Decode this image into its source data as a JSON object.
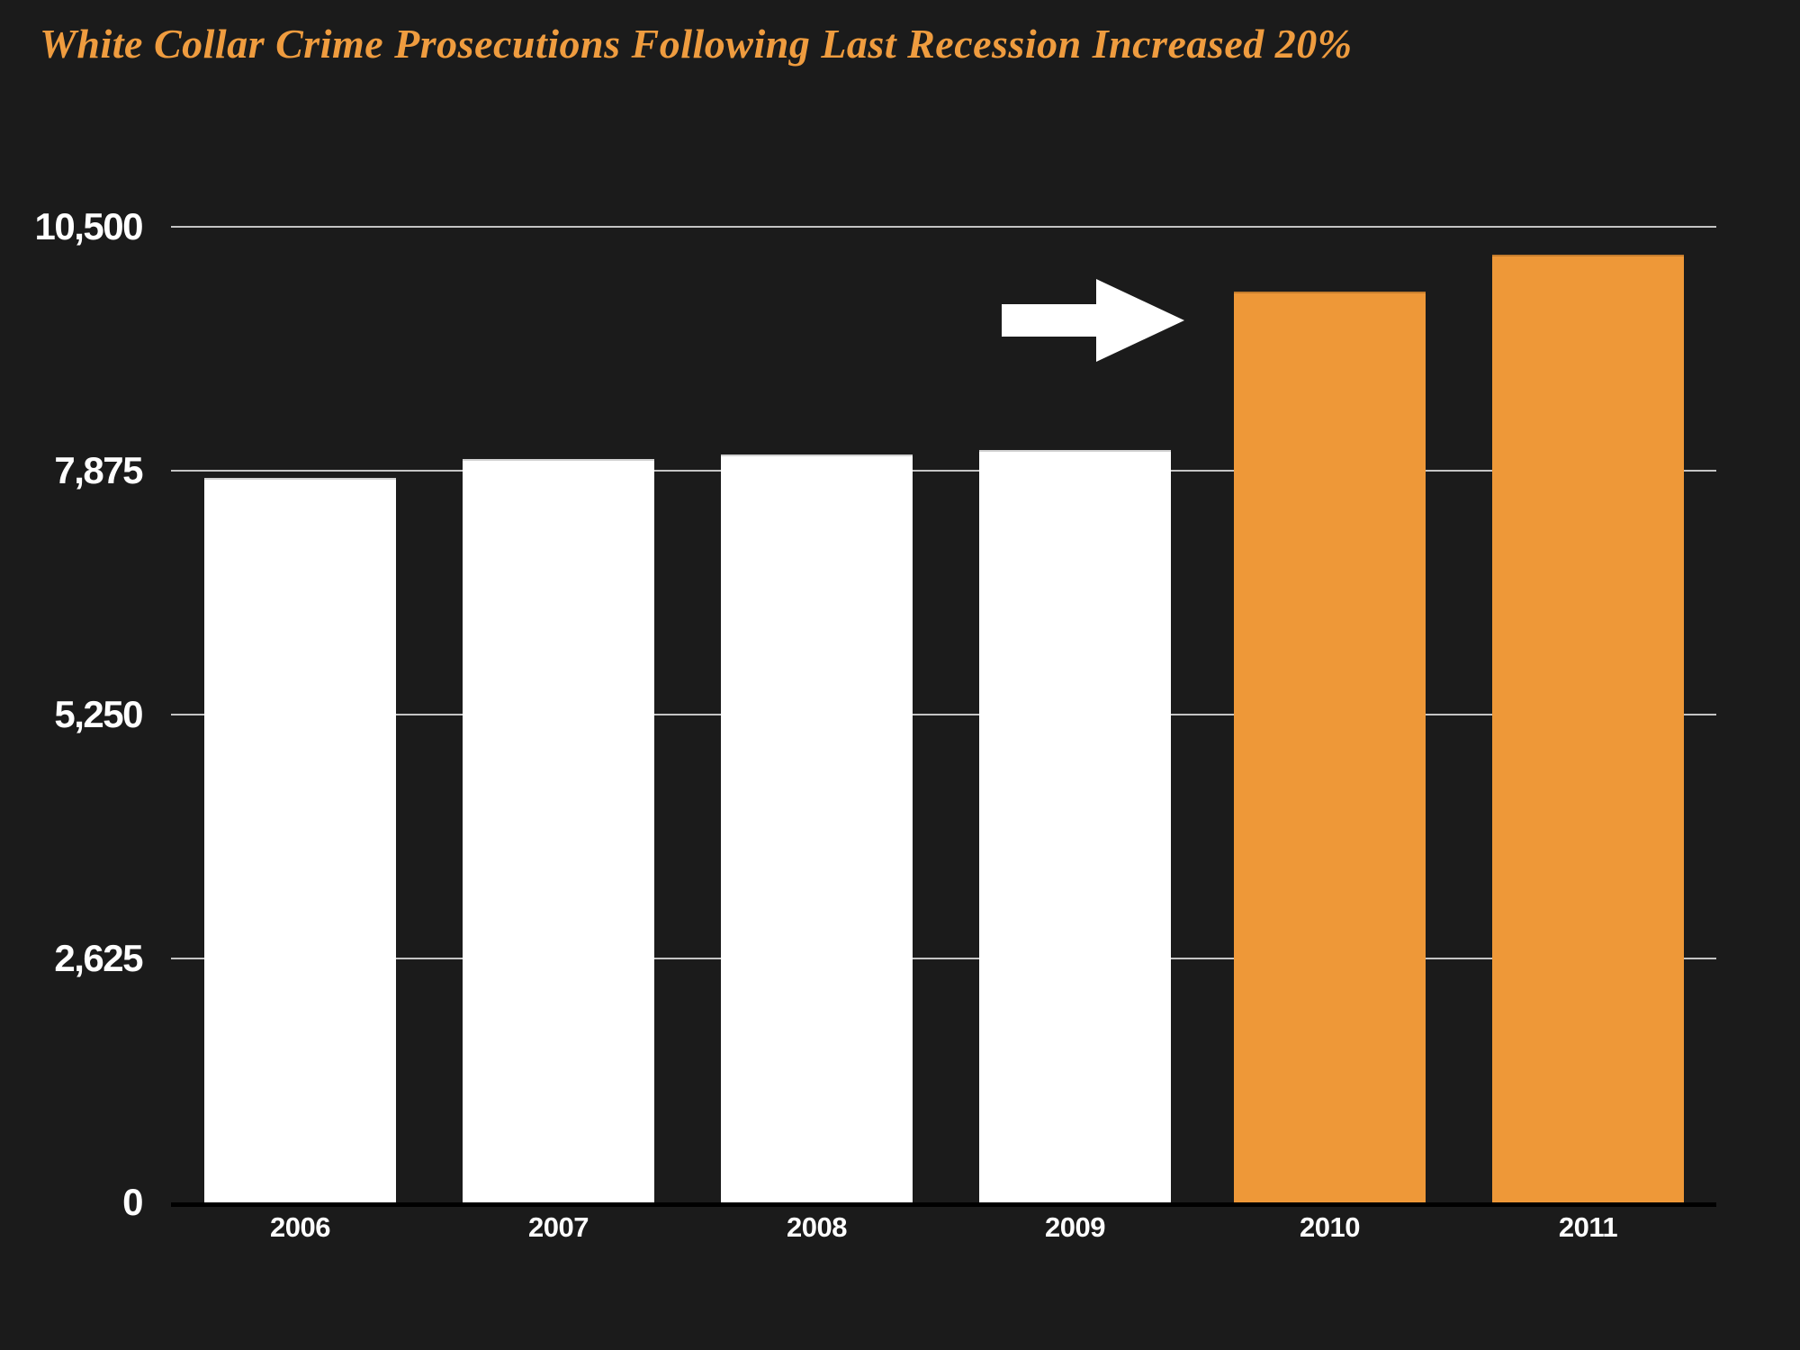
{
  "title": "White Collar Crime Prosecutions Following Last Recession Increased 20%",
  "colors": {
    "background": "#1b1b1b",
    "title": "#EF9C3F",
    "bar_default": "#FFFFFF",
    "bar_highlight": "#EE9838",
    "gridline": "#C4C4C4",
    "baseline": "#000000",
    "axis_label": "#FFFFFF"
  },
  "chart_data": {
    "type": "bar",
    "title": "White Collar Crime Prosecutions Following Last Recession Increased 20%",
    "categories": [
      "2006",
      "2007",
      "2008",
      "2009",
      "2010",
      "2011"
    ],
    "values": [
      7800,
      8000,
      8050,
      8100,
      9800,
      10200
    ],
    "bar_colors": [
      "#FFFFFF",
      "#FFFFFF",
      "#FFFFFF",
      "#FFFFFF",
      "#EE9838",
      "#EE9838"
    ],
    "highlighted_categories": [
      "2010",
      "2011"
    ],
    "yticks": [
      {
        "label": "10,500",
        "value": 10500
      },
      {
        "label": "7,875",
        "value": 7875
      },
      {
        "label": "5,250",
        "value": 5250
      },
      {
        "label": "2,625",
        "value": 2625
      },
      {
        "label": "0",
        "value": 0
      }
    ],
    "ylim": [
      0,
      10500
    ],
    "xlabel": "",
    "ylabel": "",
    "grid": true,
    "legend": false,
    "annotation": {
      "type": "arrow-right",
      "points_to": "2010",
      "color": "#FFFFFF"
    }
  }
}
